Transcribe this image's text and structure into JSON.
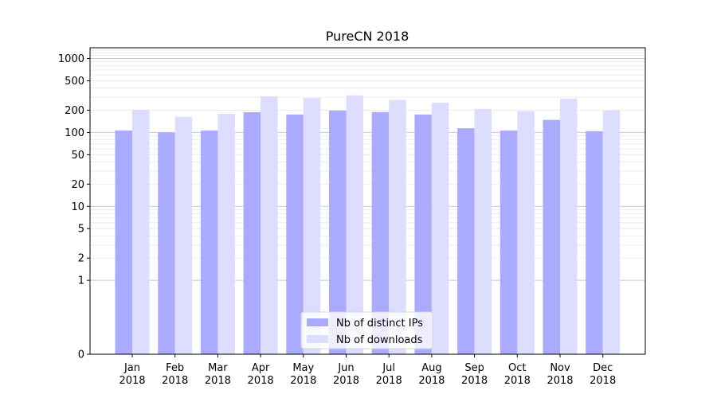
{
  "chart_data": {
    "type": "bar",
    "title": "PureCN 2018",
    "xlabel": "",
    "ylabel": "",
    "y_scale": "symlog",
    "ylim": [
      0,
      1400
    ],
    "yticks": [
      0,
      1,
      2,
      5,
      10,
      20,
      50,
      100,
      200,
      500,
      1000
    ],
    "ytick_labels": [
      "0",
      "1",
      "2",
      "5",
      "10",
      "20",
      "50",
      "100",
      "200",
      "500",
      "1000"
    ],
    "grid": true,
    "legend_position": "bottom-center",
    "categories": [
      [
        "Jan",
        "2018"
      ],
      [
        "Feb",
        "2018"
      ],
      [
        "Mar",
        "2018"
      ],
      [
        "Apr",
        "2018"
      ],
      [
        "May",
        "2018"
      ],
      [
        "Jun",
        "2018"
      ],
      [
        "Jul",
        "2018"
      ],
      [
        "Aug",
        "2018"
      ],
      [
        "Sep",
        "2018"
      ],
      [
        "Oct",
        "2018"
      ],
      [
        "Nov",
        "2018"
      ],
      [
        "Dec",
        "2018"
      ]
    ],
    "series": [
      {
        "name": "Nb of distinct IPs",
        "color": "#aaaaff",
        "values": [
          106,
          100,
          106,
          188,
          175,
          198,
          189,
          175,
          114,
          106,
          148,
          104
        ]
      },
      {
        "name": "Nb of downloads",
        "color": "#ddddff",
        "values": [
          203,
          163,
          179,
          308,
          292,
          318,
          276,
          253,
          208,
          195,
          286,
          198
        ]
      }
    ]
  }
}
